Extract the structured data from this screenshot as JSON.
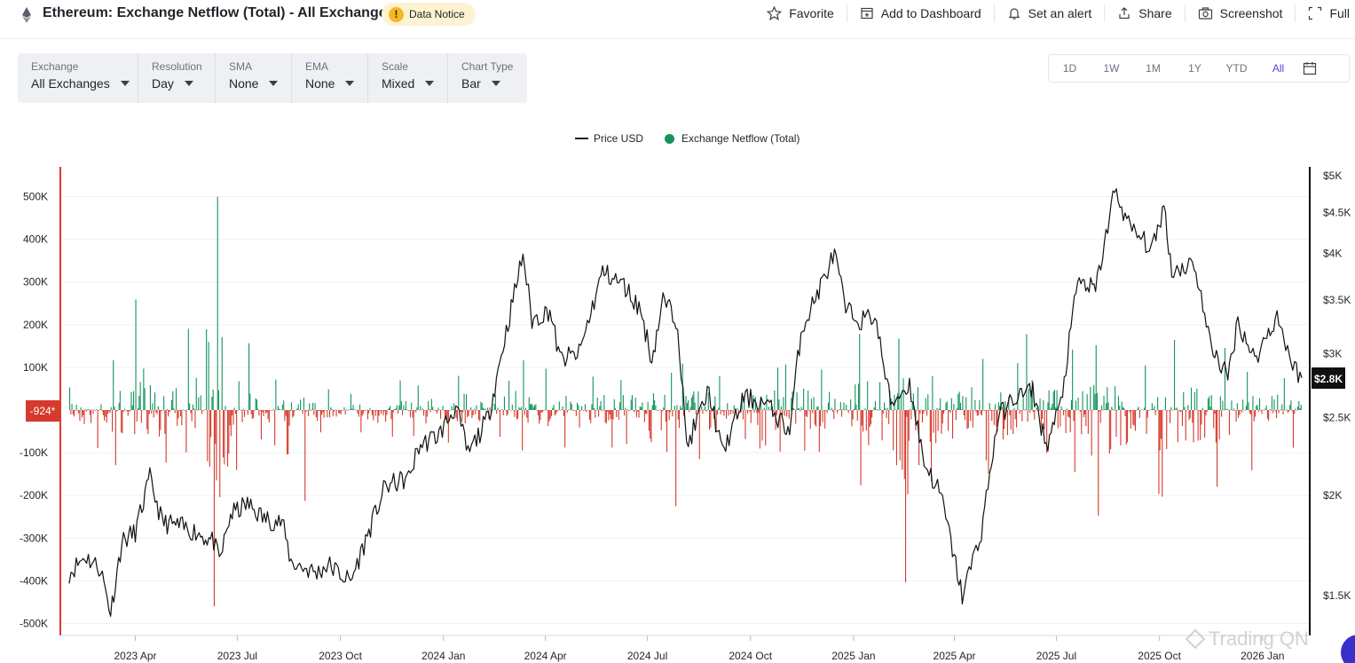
{
  "header": {
    "title": "Ethereum: Exchange Netflow (Total) - All Exchanges",
    "notice_icon": "!",
    "notice": "Data Notice",
    "actions": [
      {
        "label": "Favorite",
        "icon": "star-icon"
      },
      {
        "label": "Add to Dashboard",
        "icon": "dashboard-add-icon"
      },
      {
        "label": "Set an alert",
        "icon": "bell-icon"
      },
      {
        "label": "Share",
        "icon": "share-icon"
      },
      {
        "label": "Screenshot",
        "icon": "camera-icon"
      },
      {
        "label": "Full",
        "icon": "fullscreen-icon"
      }
    ]
  },
  "controls": [
    {
      "label": "Exchange",
      "value": "All Exchanges"
    },
    {
      "label": "Resolution",
      "value": "Day"
    },
    {
      "label": "SMA",
      "value": "None"
    },
    {
      "label": "EMA",
      "value": "None"
    },
    {
      "label": "Scale",
      "value": "Mixed"
    },
    {
      "label": "Chart Type",
      "value": "Bar"
    }
  ],
  "range": {
    "options": [
      "1D",
      "1W",
      "1M",
      "1Y",
      "YTD",
      "All"
    ],
    "active": "All"
  },
  "watermark": "Trading QN",
  "colors": {
    "inflow": "#16935c",
    "outflow": "#d63a2c",
    "price": "#111111",
    "accent": "#4f46e5",
    "left_axis": "#d63a2c"
  },
  "chart_data": {
    "type": "bar",
    "legend": [
      "Price USD",
      "Exchange Netflow (Total)"
    ],
    "x_ticks": [
      "2023 Apr",
      "2023 Jul",
      "2023 Oct",
      "2024 Jan",
      "2024 Apr",
      "2024 Jul",
      "2024 Oct",
      "2025 Jan",
      "2025 Apr",
      "2025 Jul",
      "2025 Oct",
      "2026 Jan"
    ],
    "x_range": [
      "2023-02-01",
      "2026-02-05"
    ],
    "left_axis": {
      "ticks": [
        "500K",
        "400K",
        "300K",
        "200K",
        "100K",
        "-100K",
        "-200K",
        "-300K",
        "-400K",
        "-500K"
      ],
      "ylim": [
        -500000,
        500000
      ]
    },
    "right_axis": {
      "ticks": [
        "$5K",
        "$4.5K",
        "$4K",
        "$3.5K",
        "$3K",
        "$2.5K",
        "$2K",
        "$1.5K"
      ],
      "scale": "log",
      "ylim": [
        1400,
        5000
      ]
    },
    "current_netflow_label": "-924*",
    "current_price_label": "$2.8K",
    "series": [
      {
        "name": "Price USD",
        "type": "line",
        "points": [
          [
            "2023-02-01",
            1600
          ],
          [
            "2023-02-15",
            1680
          ],
          [
            "2023-03-01",
            1620
          ],
          [
            "2023-03-10",
            1430
          ],
          [
            "2023-03-20",
            1750
          ],
          [
            "2023-04-01",
            1800
          ],
          [
            "2023-04-14",
            2100
          ],
          [
            "2023-04-25",
            1850
          ],
          [
            "2023-05-10",
            1830
          ],
          [
            "2023-05-25",
            1800
          ],
          [
            "2023-06-10",
            1750
          ],
          [
            "2023-06-15",
            1650
          ],
          [
            "2023-06-25",
            1890
          ],
          [
            "2023-07-10",
            1950
          ],
          [
            "2023-07-25",
            1870
          ],
          [
            "2023-08-10",
            1850
          ],
          [
            "2023-08-18",
            1650
          ],
          [
            "2023-09-10",
            1600
          ],
          [
            "2023-09-20",
            1640
          ],
          [
            "2023-10-10",
            1560
          ],
          [
            "2023-10-25",
            1780
          ],
          [
            "2023-11-10",
            2050
          ],
          [
            "2023-12-01",
            2100
          ],
          [
            "2023-12-10",
            2300
          ],
          [
            "2023-12-28",
            2380
          ],
          [
            "2024-01-12",
            2580
          ],
          [
            "2024-01-23",
            2250
          ],
          [
            "2024-02-10",
            2500
          ],
          [
            "2024-02-26",
            3200
          ],
          [
            "2024-03-12",
            4000
          ],
          [
            "2024-03-20",
            3300
          ],
          [
            "2024-04-05",
            3400
          ],
          [
            "2024-04-14",
            2950
          ],
          [
            "2024-05-01",
            3000
          ],
          [
            "2024-05-22",
            3800
          ],
          [
            "2024-06-10",
            3650
          ],
          [
            "2024-06-25",
            3400
          ],
          [
            "2024-07-05",
            2950
          ],
          [
            "2024-07-15",
            3500
          ],
          [
            "2024-07-28",
            3300
          ],
          [
            "2024-08-05",
            2300
          ],
          [
            "2024-08-25",
            2700
          ],
          [
            "2024-09-06",
            2250
          ],
          [
            "2024-09-25",
            2650
          ],
          [
            "2024-10-15",
            2600
          ],
          [
            "2024-11-05",
            2400
          ],
          [
            "2024-11-15",
            3200
          ],
          [
            "2024-12-01",
            3600
          ],
          [
            "2024-12-15",
            4000
          ],
          [
            "2024-12-25",
            3400
          ],
          [
            "2025-01-08",
            3300
          ],
          [
            "2025-01-20",
            3350
          ],
          [
            "2025-02-03",
            2600
          ],
          [
            "2025-02-20",
            2750
          ],
          [
            "2025-03-05",
            2200
          ],
          [
            "2025-03-20",
            2000
          ],
          [
            "2025-04-08",
            1500
          ],
          [
            "2025-04-25",
            1800
          ],
          [
            "2025-05-10",
            2500
          ],
          [
            "2025-05-25",
            2650
          ],
          [
            "2025-06-10",
            2700
          ],
          [
            "2025-06-22",
            2300
          ],
          [
            "2025-07-05",
            2600
          ],
          [
            "2025-07-20",
            3700
          ],
          [
            "2025-08-05",
            3600
          ],
          [
            "2025-08-22",
            4800
          ],
          [
            "2025-09-05",
            4300
          ],
          [
            "2025-09-25",
            4050
          ],
          [
            "2025-10-05",
            4600
          ],
          [
            "2025-10-12",
            3800
          ],
          [
            "2025-11-01",
            3900
          ],
          [
            "2025-11-15",
            3100
          ],
          [
            "2025-12-01",
            2800
          ],
          [
            "2025-12-10",
            3300
          ],
          [
            "2025-12-25",
            2950
          ],
          [
            "2026-01-14",
            3350
          ],
          [
            "2026-01-28",
            2900
          ],
          [
            "2026-02-05",
            2800
          ]
        ]
      },
      {
        "name": "Exchange Netflow (Total)",
        "type": "bar",
        "values_by_month": [
          [
            "2023-02-01",
            60000,
            -90000
          ],
          [
            "2023-03-01",
            120000,
            -150000
          ],
          [
            "2023-04-01",
            260000,
            -140000
          ],
          [
            "2023-05-01",
            200000,
            -100000
          ],
          [
            "2023-06-01",
            500000,
            -480000
          ],
          [
            "2023-07-01",
            180000,
            -80000
          ],
          [
            "2023-08-01",
            80000,
            -250000
          ],
          [
            "2023-09-01",
            50000,
            -60000
          ],
          [
            "2023-10-01",
            40000,
            -60000
          ],
          [
            "2023-11-01",
            70000,
            -70000
          ],
          [
            "2023-12-01",
            60000,
            -70000
          ],
          [
            "2024-01-01",
            90000,
            -80000
          ],
          [
            "2024-02-01",
            80000,
            -70000
          ],
          [
            "2024-03-01",
            120000,
            -100000
          ],
          [
            "2024-04-01",
            110000,
            -90000
          ],
          [
            "2024-05-01",
            90000,
            -100000
          ],
          [
            "2024-06-01",
            80000,
            -80000
          ],
          [
            "2024-07-01",
            100000,
            -230000
          ],
          [
            "2024-08-01",
            120000,
            -120000
          ],
          [
            "2024-09-01",
            80000,
            -70000
          ],
          [
            "2024-10-01",
            110000,
            -220000
          ],
          [
            "2024-11-01",
            120000,
            -110000
          ],
          [
            "2024-12-01",
            100000,
            -100000
          ],
          [
            "2025-01-01",
            200000,
            -200000
          ],
          [
            "2025-02-01",
            180000,
            -450000
          ],
          [
            "2025-03-01",
            90000,
            -180000
          ],
          [
            "2025-04-01",
            130000,
            -120000
          ],
          [
            "2025-05-01",
            120000,
            -160000
          ],
          [
            "2025-06-01",
            180000,
            -110000
          ],
          [
            "2025-07-01",
            150000,
            -150000
          ],
          [
            "2025-08-01",
            160000,
            -290000
          ],
          [
            "2025-09-01",
            120000,
            -200000
          ],
          [
            "2025-10-01",
            180000,
            -230000
          ],
          [
            "2025-11-01",
            160000,
            -180000
          ],
          [
            "2025-12-01",
            100000,
            -160000
          ],
          [
            "2026-01-01",
            80000,
            -90000
          ]
        ]
      }
    ]
  }
}
